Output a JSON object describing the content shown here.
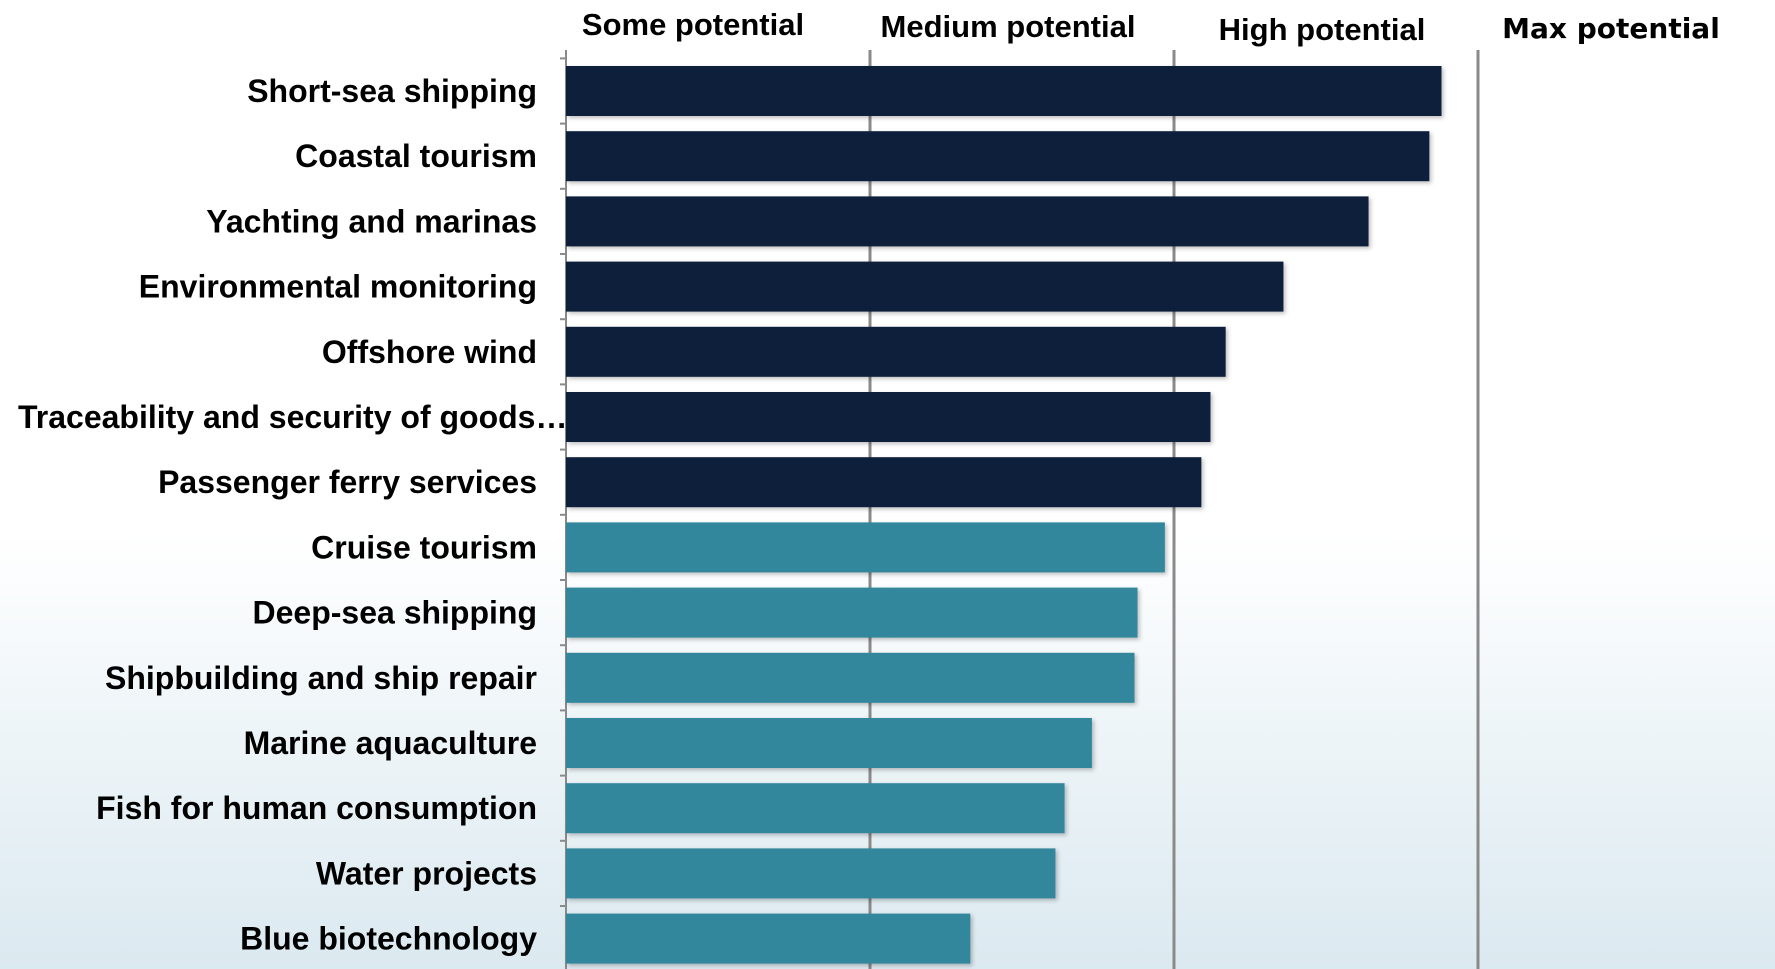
{
  "chart_data": {
    "type": "bar",
    "orientation": "horizontal",
    "categories": [
      "Short-sea shipping",
      "Coastal tourism",
      "Yachting and marinas",
      "Environmental monitoring",
      "Offshore wind",
      "Traceability and security of goods…",
      "Passenger ferry services",
      "Cruise tourism",
      "Deep-sea shipping",
      "Shipbuilding and ship repair",
      "Marine aquaculture",
      "Fish for human consumption",
      "Water projects",
      "Blue biotechnology"
    ],
    "values": [
      2.88,
      2.84,
      2.64,
      2.36,
      2.17,
      2.12,
      2.09,
      1.97,
      1.88,
      1.87,
      1.73,
      1.64,
      1.61,
      1.33
    ],
    "bar_colors": [
      "#0d1f3a",
      "#0d1f3a",
      "#0d1f3a",
      "#0d1f3a",
      "#0d1f3a",
      "#0d1f3a",
      "#0d1f3a",
      "#32879c",
      "#32879c",
      "#32879c",
      "#32879c",
      "#32879c",
      "#32879c",
      "#32879c"
    ],
    "xlim": [
      0,
      4
    ],
    "band_labels": [
      "Some potential",
      "Medium potential",
      "High potential",
      "Max potential"
    ],
    "grid": true,
    "gridline_color": "#8a8a8a"
  }
}
